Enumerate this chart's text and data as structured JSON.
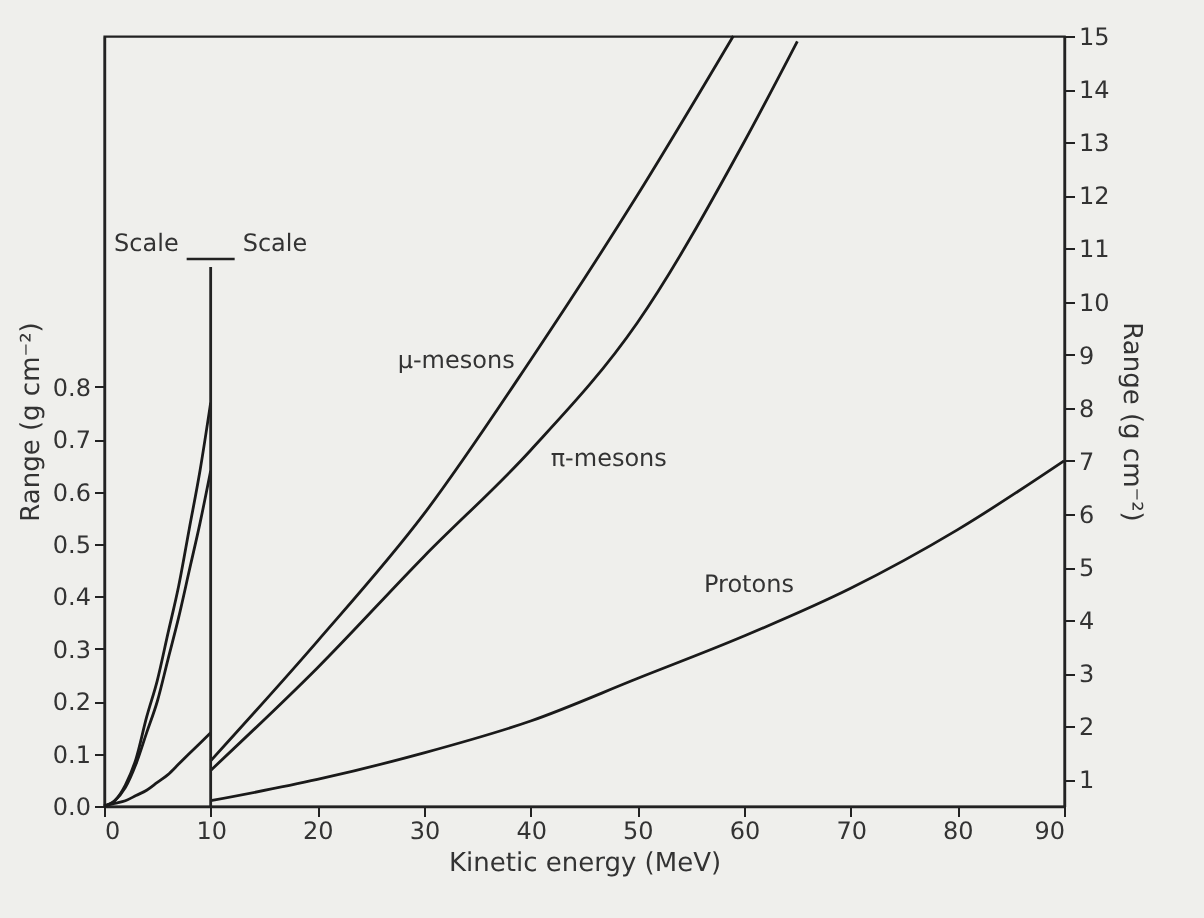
{
  "chart_data": {
    "type": "line",
    "xlabel": "Kinetic energy (MeV)",
    "ylabel": "Range (g cm⁻²)",
    "y2label": "Range (g cm⁻²)",
    "xlim": [
      0,
      90
    ],
    "xticks": [
      0,
      10,
      20,
      30,
      40,
      50,
      60,
      70,
      80,
      90
    ],
    "ylim": [
      0,
      1.47
    ],
    "yticks": [
      {
        "value": 0,
        "label": "0.0"
      },
      {
        "value": 0.1,
        "label": "0.1"
      },
      {
        "value": 0.2,
        "label": "0.2"
      },
      {
        "value": 0.3,
        "label": "0.3"
      },
      {
        "value": 0.4,
        "label": "0.4"
      },
      {
        "value": 0.5,
        "label": "0.5"
      },
      {
        "value": 0.6,
        "label": "0.6"
      },
      {
        "value": 0.7,
        "label": "0.7"
      },
      {
        "value": 0.8,
        "label": "0.8"
      }
    ],
    "y2lim": [
      0.5,
      15
    ],
    "y2ticks": [
      1,
      2,
      3,
      4,
      5,
      6,
      7,
      8,
      9,
      10,
      11,
      12,
      13,
      14,
      15
    ],
    "series": [
      {
        "color": "#1a1a1a",
        "axis": "y",
        "x": [
          0,
          1,
          2,
          3,
          4,
          5,
          6,
          7,
          8,
          9,
          10
        ],
        "values": [
          0,
          0.01,
          0.04,
          0.09,
          0.17,
          0.24,
          0.33,
          0.42,
          0.53,
          0.64,
          0.77
        ]
      },
      {
        "color": "#1a1a1a",
        "axis": "y",
        "x": [
          0,
          1,
          2,
          3,
          4,
          5,
          6,
          7,
          8,
          9,
          10
        ],
        "values": [
          0,
          0.01,
          0.035,
          0.08,
          0.14,
          0.2,
          0.28,
          0.36,
          0.45,
          0.54,
          0.64
        ]
      },
      {
        "color": "#1a1a1a",
        "axis": "y",
        "x": [
          0,
          1,
          2,
          3,
          4,
          5,
          6,
          7,
          8,
          9,
          10
        ],
        "values": [
          0,
          0.005,
          0.01,
          0.02,
          0.03,
          0.045,
          0.06,
          0.08,
          0.1,
          0.12,
          0.14
        ]
      },
      {
        "name": "μ-mesons",
        "color": "#1a1a1a",
        "axis": "y2",
        "x": [
          10,
          20,
          30,
          40,
          50,
          59
        ],
        "values": [
          1.35,
          3.6,
          6.0,
          8.9,
          12.0,
          15
        ]
      },
      {
        "name": "π-mesons",
        "color": "#1a1a1a",
        "axis": "y2",
        "x": [
          10,
          20,
          30,
          40,
          50,
          60,
          65
        ],
        "values": [
          1.17,
          3.1,
          5.2,
          7.2,
          9.6,
          13.0,
          14.9
        ]
      },
      {
        "name": "Protons",
        "color": "#1a1a1a",
        "axis": "y2",
        "x": [
          10,
          20,
          30,
          40,
          50,
          60,
          70,
          80,
          90
        ],
        "values": [
          0.6,
          1.0,
          1.5,
          2.1,
          2.9,
          3.7,
          4.6,
          5.7,
          7.0
        ]
      }
    ],
    "ref_lines": [
      {
        "axis": "x",
        "value": 10
      }
    ],
    "annotations": [
      "Scale",
      "Scale"
    ]
  }
}
